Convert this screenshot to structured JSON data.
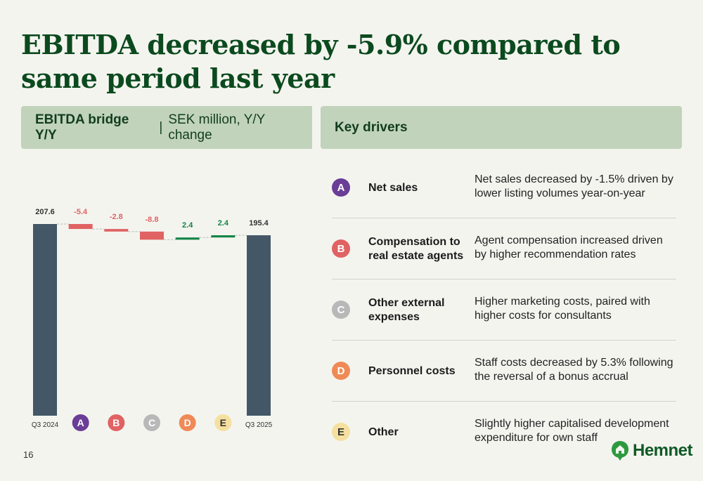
{
  "title": "EBITDA decreased by -5.9% compared to same period last year",
  "chart_header": {
    "bold": "EBITDA bridge Y/Y",
    "separator": "|",
    "normal": "SEK million, Y/Y change"
  },
  "drivers_header": "Key drivers",
  "colors": {
    "total_bar": "#435766",
    "negative": "#e06262",
    "positive": "#138446",
    "title": "#0b4a1e",
    "header_bg": "#c1d3bb",
    "logo": "#0f5a25"
  },
  "chart_data": {
    "type": "bar",
    "subtype": "waterfall",
    "title": "EBITDA bridge Y/Y",
    "ylabel": "SEK million, Y/Y change",
    "categories": [
      "Q3 2024",
      "A",
      "B",
      "C",
      "D",
      "E",
      "Q3 2025"
    ],
    "values": [
      207.6,
      -5.4,
      -2.8,
      -8.8,
      2.4,
      2.4,
      195.4
    ],
    "labels": [
      "207.6",
      "-5.4",
      "-2.8",
      "-8.8",
      "2.4",
      "2.4",
      "195.4"
    ],
    "kinds": [
      "total",
      "delta",
      "delta",
      "delta",
      "delta",
      "delta",
      "total"
    ],
    "ylim": [
      0,
      207.6
    ]
  },
  "drivers": [
    {
      "letter": "A",
      "color": "#6a3d96",
      "name": "Net sales",
      "desc": "Net sales decreased by -1.5% driven by lower listing volumes year-on-year"
    },
    {
      "letter": "B",
      "color": "#e06262",
      "name": "Compensation to real estate agents",
      "desc": "Agent compensation increased driven by higher recommendation rates"
    },
    {
      "letter": "C",
      "color": "#b8b8b8",
      "name": "Other external expenses",
      "desc": "Higher marketing costs, paired with higher costs for consultants"
    },
    {
      "letter": "D",
      "color": "#ef8a56",
      "name": "Personnel costs",
      "desc": "Staff costs decreased by 5.3% following the reversal of a bonus accrual"
    },
    {
      "letter": "E",
      "color": "#f5e0a0",
      "name": "Other",
      "desc": "Slightly higher capitalised development expenditure for own staff"
    }
  ],
  "page_number": "16",
  "logo_text": "Hemnet",
  "logo_icon": "house-icon"
}
